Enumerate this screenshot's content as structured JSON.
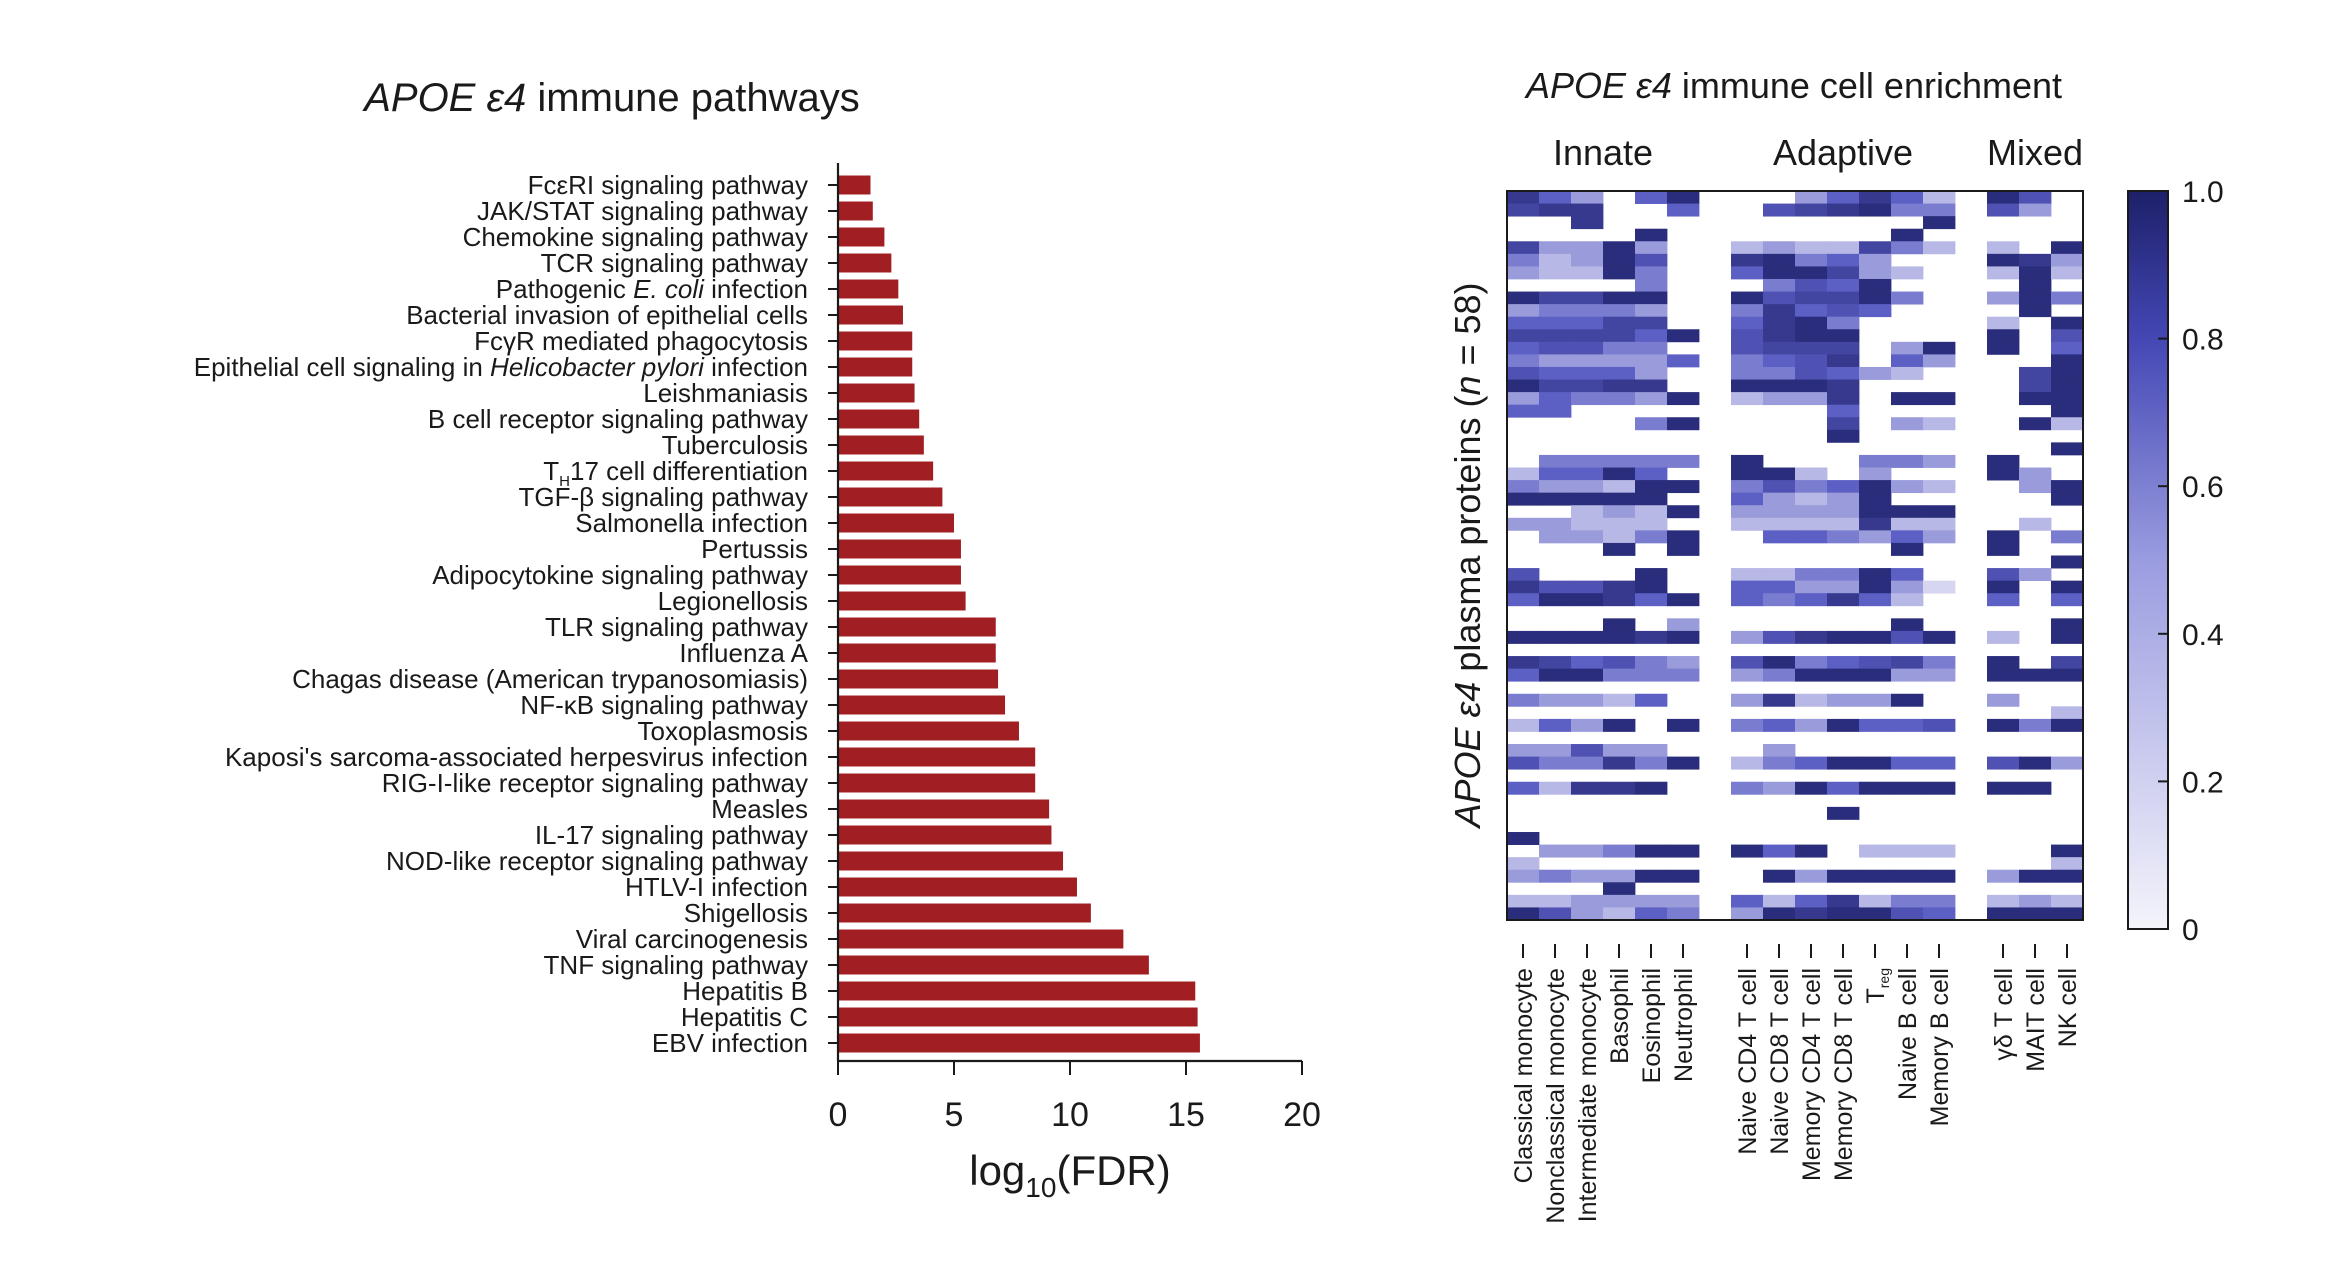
{
  "bar_chart": {
    "title_italic": "APOE ε4",
    "title_rest": " immune pathways",
    "xlabel_main": "log",
    "xlabel_sub": "10",
    "xlabel_tail": "(FDR)",
    "colors": {
      "bar": "#a11f22",
      "axis": "#1a1a1a"
    }
  },
  "heatmap": {
    "title_italic": "APOE ε4",
    "title_rest": " immune cell enrichment",
    "ylabel_italic": "APOE ε4",
    "ylabel_rest": " plasma proteins (",
    "ylabel_n": "n",
    "ylabel_eq": " = 58)",
    "groups": [
      "Innate",
      "Adaptive",
      "Mixed"
    ],
    "colorbar_ticks": [
      "1.0",
      "0.8",
      "0.6",
      "0.4",
      "0.2",
      "0"
    ],
    "colors": {
      "high": "#1d2069",
      "mid": "#5c5fc4",
      "low": "#f4f4fb"
    }
  },
  "chart_data": [
    {
      "type": "bar",
      "orientation": "horizontal",
      "title": "APOE ε4 immune pathways",
      "xlabel": "log10(FDR)",
      "ylabel": "",
      "xlim": [
        0,
        20
      ],
      "xticks": [
        "0",
        "5",
        "10",
        "15",
        "20"
      ],
      "categories": [
        "FcεRI signaling pathway",
        "JAK/STAT signaling pathway",
        "Chemokine signaling pathway",
        "TCR signaling pathway",
        "Pathogenic E. coli infection",
        "Bacterial invasion of epithelial cells",
        "FcγR mediated phagocytosis",
        "Epithelial cell signaling in Helicobacter pylori infection",
        "Leishmaniasis",
        "B cell receptor signaling pathway",
        "Tuberculosis",
        "TH17 cell differentiation",
        "TGF-β signaling pathway",
        "Salmonella infection",
        "Pertussis",
        "Adipocytokine signaling pathway",
        "Legionellosis",
        "TLR signaling pathway",
        "Influenza A",
        "Chagas disease (American trypanosomiasis)",
        "NF-κB signaling pathway",
        "Toxoplasmosis",
        "Kaposi's sarcoma-associated herpesvirus infection",
        "RIG-I-like receptor signaling pathway",
        "Measles",
        "IL-17 signaling pathway",
        "NOD-like receptor signaling pathway",
        "HTLV-I infection",
        "Shigellosis",
        "Viral carcinogenesis",
        "TNF signaling pathway",
        "Hepatitis B",
        "Hepatitis C",
        "EBV infection"
      ],
      "values": [
        1.4,
        1.5,
        2.0,
        2.3,
        2.6,
        2.8,
        3.2,
        3.2,
        3.3,
        3.5,
        3.7,
        4.1,
        4.5,
        5.0,
        5.3,
        5.3,
        5.5,
        6.8,
        6.8,
        6.9,
        7.2,
        7.8,
        8.5,
        8.5,
        9.1,
        9.2,
        9.7,
        10.3,
        10.9,
        12.3,
        13.4,
        15.4,
        15.5,
        15.6
      ]
    },
    {
      "type": "heatmap",
      "title": "APOE ε4 immune cell enrichment",
      "ylabel": "APOE ε4 plasma proteins (n = 58)",
      "groups": [
        {
          "name": "Innate",
          "columns": [
            "Classical monocyte",
            "Nonclassical monocyte",
            "Intermediate monocyte",
            "Basophil",
            "Eosinophil",
            "Neutrophil"
          ]
        },
        {
          "name": "Adaptive",
          "columns": [
            "Naive CD4 T cell",
            "Naive CD8 T cell",
            "Memory CD4 T cell",
            "Memory CD8 T cell",
            "Treg",
            "Naive B cell",
            "Memory B cell"
          ]
        },
        {
          "name": "Mixed",
          "columns": [
            "γδ T cell",
            "MAIT cell",
            "NK cell"
          ]
        }
      ],
      "columns": [
        "Classical monocyte",
        "Nonclassical monocyte",
        "Intermediate monocyte",
        "Basophil",
        "Eosinophil",
        "Neutrophil",
        "Naive CD4 T cell",
        "Naive CD8 T cell",
        "Memory CD4 T cell",
        "Memory CD8 T cell",
        "Treg",
        "Naive B cell",
        "Memory B cell",
        "γδ T cell",
        "MAIT cell",
        "NK cell"
      ],
      "rows": 58,
      "zlim": [
        0,
        1
      ],
      "colorbar_ticks": [
        1.0,
        0.8,
        0.6,
        0.4,
        0.2,
        0
      ],
      "values": [
        [
          0.8,
          0.5,
          0.3,
          0.0,
          0.5,
          0.9,
          0.0,
          0.0,
          0.3,
          0.5,
          0.8,
          0.5,
          0.2,
          0.9,
          0.6,
          0.0
        ],
        [
          0.7,
          0.8,
          0.8,
          0.0,
          0.0,
          0.5,
          0.0,
          0.6,
          0.7,
          0.8,
          0.9,
          0.4,
          0.4,
          0.6,
          0.3,
          0.0
        ],
        [
          0.0,
          0.0,
          0.8,
          0.0,
          0.0,
          0.0,
          0.0,
          0.0,
          0.0,
          0.0,
          0.0,
          0.0,
          0.9,
          0.0,
          0.0,
          0.0
        ],
        [
          0.0,
          0.0,
          0.0,
          0.0,
          0.9,
          0.0,
          0.0,
          0.0,
          0.0,
          0.0,
          0.0,
          0.9,
          0.0,
          0.0,
          0.0,
          0.0
        ],
        [
          0.7,
          0.3,
          0.3,
          0.9,
          0.3,
          0.0,
          0.2,
          0.3,
          0.2,
          0.2,
          0.7,
          0.4,
          0.2,
          0.2,
          0.0,
          0.9
        ],
        [
          0.4,
          0.2,
          0.3,
          0.9,
          0.6,
          0.0,
          0.8,
          0.9,
          0.4,
          0.5,
          0.3,
          0.0,
          0.0,
          0.9,
          0.8,
          0.3
        ],
        [
          0.3,
          0.2,
          0.2,
          0.9,
          0.4,
          0.0,
          0.5,
          0.9,
          0.9,
          0.7,
          0.3,
          0.2,
          0.0,
          0.2,
          0.9,
          0.2
        ],
        [
          0.0,
          0.0,
          0.0,
          0.0,
          0.4,
          0.0,
          0.0,
          0.4,
          0.6,
          0.5,
          0.9,
          0.0,
          0.0,
          0.0,
          0.9,
          0.0
        ],
        [
          0.9,
          0.7,
          0.7,
          0.9,
          0.9,
          0.0,
          0.9,
          0.6,
          0.7,
          0.7,
          0.9,
          0.4,
          0.0,
          0.3,
          0.9,
          0.4
        ],
        [
          0.3,
          0.4,
          0.4,
          0.4,
          0.3,
          0.0,
          0.4,
          0.8,
          0.5,
          0.6,
          0.5,
          0.0,
          0.0,
          0.0,
          0.9,
          0.0
        ],
        [
          0.5,
          0.5,
          0.5,
          0.7,
          0.7,
          0.0,
          0.5,
          0.8,
          0.9,
          0.4,
          0.0,
          0.0,
          0.0,
          0.2,
          0.0,
          0.9
        ],
        [
          0.7,
          0.7,
          0.7,
          0.7,
          0.5,
          0.9,
          0.6,
          0.8,
          0.9,
          0.9,
          0.0,
          0.0,
          0.0,
          0.9,
          0.0,
          0.6
        ],
        [
          0.5,
          0.6,
          0.6,
          0.4,
          0.4,
          0.0,
          0.6,
          0.7,
          0.7,
          0.7,
          0.0,
          0.3,
          0.9,
          0.9,
          0.0,
          0.5
        ],
        [
          0.4,
          0.3,
          0.3,
          0.3,
          0.3,
          0.5,
          0.4,
          0.5,
          0.6,
          0.8,
          0.0,
          0.5,
          0.3,
          0.0,
          0.0,
          0.9
        ],
        [
          0.6,
          0.5,
          0.5,
          0.5,
          0.3,
          0.0,
          0.4,
          0.4,
          0.6,
          0.5,
          0.3,
          0.2,
          0.0,
          0.0,
          0.7,
          0.9
        ],
        [
          0.9,
          0.7,
          0.7,
          0.8,
          0.8,
          0.0,
          0.9,
          0.9,
          0.9,
          0.8,
          0.0,
          0.0,
          0.0,
          0.0,
          0.7,
          0.9
        ],
        [
          0.3,
          0.5,
          0.4,
          0.4,
          0.3,
          0.9,
          0.2,
          0.3,
          0.3,
          0.8,
          0.0,
          0.9,
          0.9,
          0.0,
          0.9,
          0.9
        ],
        [
          0.5,
          0.5,
          0.0,
          0.0,
          0.0,
          0.0,
          0.0,
          0.0,
          0.0,
          0.5,
          0.0,
          0.0,
          0.0,
          0.0,
          0.0,
          0.9
        ],
        [
          0.0,
          0.0,
          0.0,
          0.0,
          0.4,
          0.9,
          0.0,
          0.0,
          0.0,
          0.7,
          0.0,
          0.3,
          0.2,
          0.0,
          0.9,
          0.2
        ],
        [
          0.0,
          0.0,
          0.0,
          0.0,
          0.0,
          0.0,
          0.0,
          0.0,
          0.0,
          0.9,
          0.0,
          0.0,
          0.0,
          0.0,
          0.0,
          0.0
        ],
        [
          0.0,
          0.0,
          0.0,
          0.0,
          0.0,
          0.0,
          0.0,
          0.0,
          0.0,
          0.0,
          0.0,
          0.0,
          0.0,
          0.0,
          0.0,
          0.9
        ],
        [
          0.0,
          0.4,
          0.4,
          0.4,
          0.4,
          0.4,
          0.9,
          0.0,
          0.0,
          0.0,
          0.4,
          0.4,
          0.3,
          0.9,
          0.0,
          0.0
        ],
        [
          0.2,
          0.5,
          0.5,
          0.9,
          0.5,
          0.0,
          0.9,
          0.9,
          0.2,
          0.0,
          0.3,
          0.0,
          0.0,
          0.9,
          0.3,
          0.0
        ],
        [
          0.4,
          0.3,
          0.3,
          0.2,
          0.9,
          0.9,
          0.4,
          0.6,
          0.4,
          0.5,
          0.9,
          0.3,
          0.2,
          0.0,
          0.3,
          0.9
        ],
        [
          0.9,
          0.9,
          0.9,
          0.9,
          0.9,
          0.0,
          0.5,
          0.3,
          0.2,
          0.3,
          0.9,
          0.0,
          0.0,
          0.0,
          0.0,
          0.9
        ],
        [
          0.0,
          0.0,
          0.2,
          0.3,
          0.2,
          0.9,
          0.3,
          0.3,
          0.3,
          0.3,
          0.9,
          0.9,
          0.9,
          0.0,
          0.0,
          0.0
        ],
        [
          0.3,
          0.3,
          0.2,
          0.2,
          0.2,
          0.0,
          0.2,
          0.2,
          0.2,
          0.2,
          0.8,
          0.2,
          0.2,
          0.0,
          0.2,
          0.0
        ],
        [
          0.0,
          0.3,
          0.3,
          0.2,
          0.4,
          0.9,
          0.0,
          0.5,
          0.5,
          0.4,
          0.3,
          0.5,
          0.3,
          0.9,
          0.0,
          0.4
        ],
        [
          0.0,
          0.0,
          0.0,
          0.9,
          0.0,
          0.9,
          0.0,
          0.0,
          0.0,
          0.0,
          0.0,
          0.9,
          0.0,
          0.9,
          0.0,
          0.0
        ],
        [
          0.0,
          0.0,
          0.0,
          0.0,
          0.0,
          0.0,
          0.0,
          0.0,
          0.0,
          0.0,
          0.0,
          0.0,
          0.0,
          0.0,
          0.0,
          0.9
        ],
        [
          0.6,
          0.0,
          0.0,
          0.0,
          0.9,
          0.0,
          0.2,
          0.2,
          0.4,
          0.4,
          0.9,
          0.5,
          0.0,
          0.6,
          0.3,
          0.0
        ],
        [
          0.8,
          0.6,
          0.6,
          0.8,
          0.9,
          0.0,
          0.5,
          0.5,
          0.3,
          0.3,
          0.9,
          0.3,
          0.1,
          0.9,
          0.0,
          0.9
        ],
        [
          0.5,
          0.9,
          0.9,
          0.8,
          0.5,
          0.9,
          0.5,
          0.4,
          0.5,
          0.8,
          0.5,
          0.2,
          0.0,
          0.5,
          0.0,
          0.5
        ],
        [
          0.0,
          0.0,
          0.0,
          0.0,
          0.0,
          0.0,
          0.0,
          0.0,
          0.0,
          0.0,
          0.0,
          0.0,
          0.0,
          0.0,
          0.0,
          0.0
        ],
        [
          0.0,
          0.0,
          0.0,
          0.9,
          0.0,
          0.3,
          0.0,
          0.0,
          0.0,
          0.0,
          0.0,
          0.9,
          0.0,
          0.0,
          0.0,
          0.9
        ],
        [
          0.9,
          0.9,
          0.9,
          0.9,
          0.8,
          0.9,
          0.3,
          0.6,
          0.8,
          0.9,
          0.9,
          0.6,
          0.9,
          0.2,
          0.0,
          0.9
        ],
        [
          0.0,
          0.0,
          0.0,
          0.0,
          0.0,
          0.0,
          0.0,
          0.0,
          0.0,
          0.0,
          0.0,
          0.0,
          0.0,
          0.0,
          0.0,
          0.0
        ],
        [
          0.8,
          0.7,
          0.5,
          0.6,
          0.4,
          0.3,
          0.6,
          0.9,
          0.4,
          0.5,
          0.6,
          0.7,
          0.4,
          0.9,
          0.0,
          0.7
        ],
        [
          0.5,
          0.9,
          0.9,
          0.4,
          0.4,
          0.4,
          0.3,
          0.4,
          0.9,
          0.9,
          0.9,
          0.3,
          0.3,
          0.9,
          0.9,
          0.9
        ],
        [
          0.0,
          0.0,
          0.0,
          0.0,
          0.0,
          0.0,
          0.0,
          0.0,
          0.0,
          0.0,
          0.0,
          0.0,
          0.0,
          0.0,
          0.0,
          0.0
        ],
        [
          0.4,
          0.3,
          0.3,
          0.2,
          0.5,
          0.0,
          0.3,
          0.8,
          0.2,
          0.3,
          0.3,
          0.9,
          0.0,
          0.3,
          0.0,
          0.0
        ],
        [
          0.0,
          0.0,
          0.0,
          0.0,
          0.0,
          0.0,
          0.0,
          0.0,
          0.0,
          0.0,
          0.0,
          0.0,
          0.0,
          0.0,
          0.0,
          0.2
        ],
        [
          0.2,
          0.5,
          0.3,
          0.9,
          0.0,
          0.9,
          0.4,
          0.5,
          0.3,
          0.9,
          0.5,
          0.5,
          0.6,
          0.9,
          0.4,
          0.9
        ],
        [
          0.0,
          0.0,
          0.0,
          0.0,
          0.0,
          0.0,
          0.0,
          0.0,
          0.0,
          0.0,
          0.0,
          0.0,
          0.0,
          0.0,
          0.0,
          0.0
        ],
        [
          0.3,
          0.3,
          0.6,
          0.3,
          0.3,
          0.0,
          0.0,
          0.3,
          0.0,
          0.0,
          0.0,
          0.0,
          0.0,
          0.0,
          0.0,
          0.0
        ],
        [
          0.6,
          0.4,
          0.4,
          0.8,
          0.4,
          0.9,
          0.2,
          0.4,
          0.5,
          0.9,
          0.9,
          0.5,
          0.5,
          0.6,
          0.9,
          0.3
        ],
        [
          0.0,
          0.0,
          0.0,
          0.0,
          0.0,
          0.0,
          0.0,
          0.0,
          0.0,
          0.0,
          0.0,
          0.0,
          0.0,
          0.0,
          0.0,
          0.0
        ],
        [
          0.5,
          0.2,
          0.8,
          0.8,
          0.9,
          0.0,
          0.4,
          0.3,
          0.9,
          0.5,
          0.9,
          0.9,
          0.9,
          0.9,
          0.9,
          0.0
        ],
        [
          0.0,
          0.0,
          0.0,
          0.0,
          0.0,
          0.0,
          0.0,
          0.0,
          0.0,
          0.0,
          0.0,
          0.0,
          0.0,
          0.0,
          0.0,
          0.0
        ],
        [
          0.0,
          0.0,
          0.0,
          0.0,
          0.0,
          0.0,
          0.0,
          0.0,
          0.0,
          0.9,
          0.0,
          0.0,
          0.0,
          0.0,
          0.0,
          0.0
        ],
        [
          0.0,
          0.0,
          0.0,
          0.0,
          0.0,
          0.0,
          0.0,
          0.0,
          0.0,
          0.0,
          0.0,
          0.0,
          0.0,
          0.0,
          0.0,
          0.0
        ],
        [
          0.9,
          0.0,
          0.0,
          0.0,
          0.0,
          0.0,
          0.0,
          0.0,
          0.0,
          0.0,
          0.0,
          0.0,
          0.0,
          0.0,
          0.0,
          0.0
        ],
        [
          0.0,
          0.3,
          0.3,
          0.4,
          0.9,
          0.9,
          0.9,
          0.5,
          0.9,
          0.0,
          0.2,
          0.2,
          0.2,
          0.0,
          0.0,
          0.9
        ],
        [
          0.2,
          0.0,
          0.0,
          0.0,
          0.0,
          0.0,
          0.0,
          0.0,
          0.0,
          0.0,
          0.0,
          0.0,
          0.0,
          0.0,
          0.0,
          0.2
        ],
        [
          0.3,
          0.4,
          0.3,
          0.3,
          0.9,
          0.9,
          0.0,
          0.9,
          0.3,
          0.9,
          0.9,
          0.9,
          0.9,
          0.3,
          0.9,
          0.9
        ],
        [
          0.0,
          0.0,
          0.0,
          0.9,
          0.0,
          0.0,
          0.0,
          0.0,
          0.0,
          0.0,
          0.0,
          0.0,
          0.0,
          0.0,
          0.0,
          0.0
        ],
        [
          0.2,
          0.2,
          0.3,
          0.3,
          0.3,
          0.3,
          0.5,
          0.2,
          0.5,
          0.8,
          0.2,
          0.4,
          0.4,
          0.2,
          0.3,
          0.2
        ],
        [
          0.9,
          0.6,
          0.3,
          0.2,
          0.5,
          0.4,
          0.3,
          0.9,
          0.8,
          0.9,
          0.9,
          0.6,
          0.5,
          0.9,
          0.9,
          0.9
        ]
      ]
    }
  ]
}
